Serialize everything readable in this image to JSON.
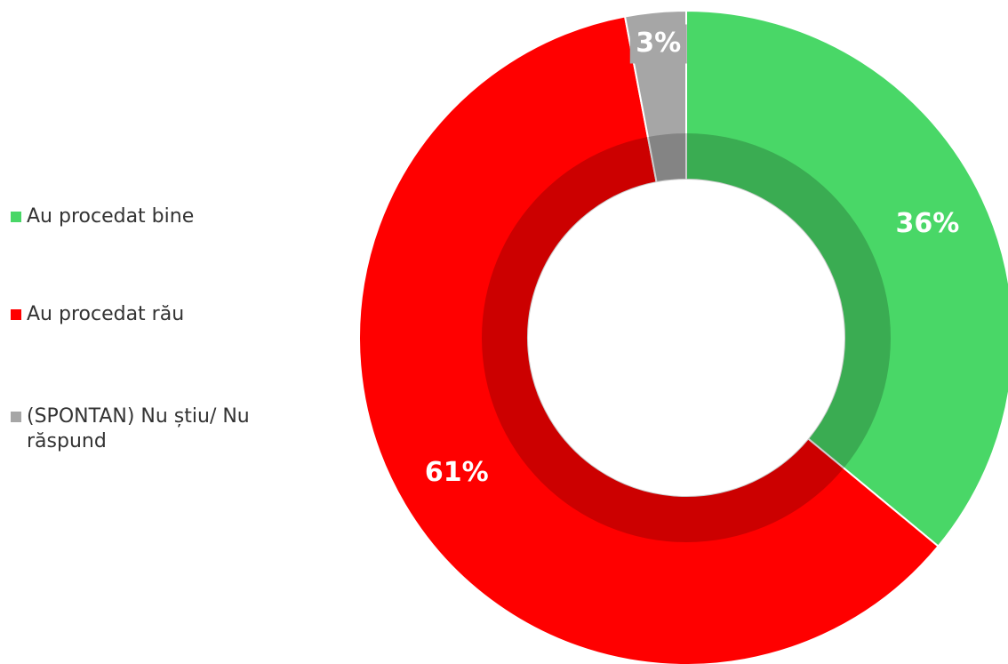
{
  "chart_data": {
    "type": "donut",
    "categories": [
      "Au procedat bine",
      "Au procedat rău",
      "(SPONTAN) Nu știu/ Nu răspund"
    ],
    "values": [
      36,
      61,
      3
    ],
    "value_labels": [
      "36%",
      "61%",
      "3%"
    ],
    "colors": [
      "#49d767",
      "#ff0000",
      "#a6a6a6"
    ],
    "legend": "left"
  }
}
